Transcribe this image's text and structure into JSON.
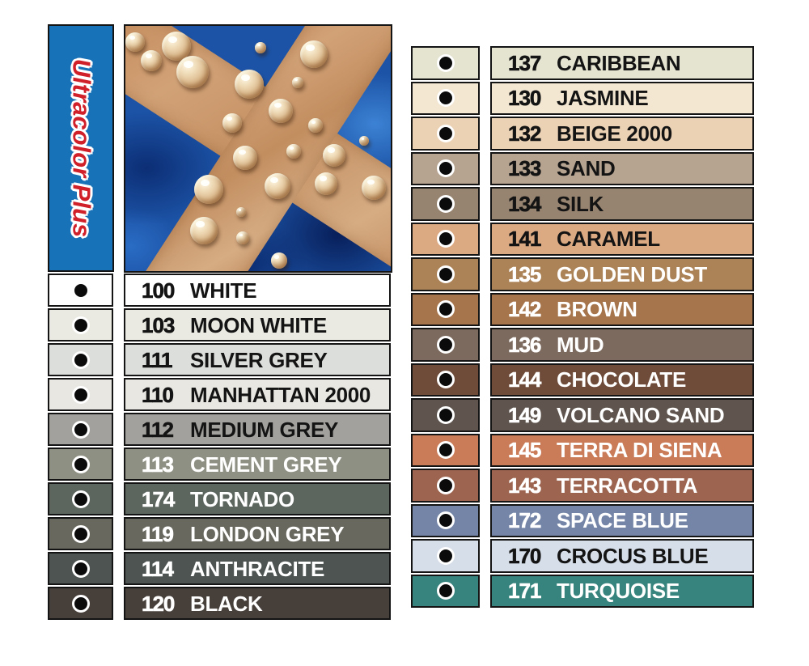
{
  "banner": {
    "title": "Ultracolor Plus",
    "bg_color": "#1872b8",
    "text_color": "#d0202a"
  },
  "photo": {
    "description": "blue tiles with tan grout cross and beaded water droplets",
    "tile_color": "#1c53a6",
    "grout_color": "#c79468",
    "droplets": [
      [
        12,
        20,
        12
      ],
      [
        32,
        43,
        13
      ],
      [
        63,
        25,
        18
      ],
      [
        83,
        57,
        20
      ],
      [
        167,
        27,
        7
      ],
      [
        233,
        35,
        17
      ],
      [
        153,
        72,
        18
      ],
      [
        213,
        70,
        7
      ],
      [
        192,
        105,
        15
      ],
      [
        132,
        120,
        12
      ],
      [
        235,
        123,
        9
      ],
      [
        148,
        163,
        15
      ],
      [
        208,
        155,
        9
      ],
      [
        258,
        160,
        14
      ],
      [
        295,
        142,
        6
      ],
      [
        103,
        202,
        18
      ],
      [
        188,
        198,
        16
      ],
      [
        248,
        195,
        14
      ],
      [
        307,
        200,
        15
      ],
      [
        143,
        230,
        6
      ],
      [
        97,
        253,
        17
      ],
      [
        145,
        262,
        8
      ],
      [
        190,
        290,
        10
      ]
    ]
  },
  "left_table": {
    "rows": [
      {
        "number": "100",
        "name": "WHITE",
        "color": "#ffffff",
        "text_color": "#141414"
      },
      {
        "number": "103",
        "name": "MOON WHITE",
        "color": "#eaeae2",
        "text_color": "#141414"
      },
      {
        "number": "111",
        "name": "SILVER GREY",
        "color": "#dcdedb",
        "text_color": "#141414"
      },
      {
        "number": "110",
        "name": "MANHATTAN 2000",
        "color": "#e9e7e1",
        "text_color": "#141414"
      },
      {
        "number": "112",
        "name": "MEDIUM GREY",
        "color": "#a3a19d",
        "text_color": "#141414"
      },
      {
        "number": "113",
        "name": "CEMENT GREY",
        "color": "#8e9083",
        "text_color": "#ffffff"
      },
      {
        "number": "174",
        "name": "TORNADO",
        "color": "#5d655f",
        "text_color": "#ffffff"
      },
      {
        "number": "119",
        "name": "LONDON GREY",
        "color": "#68685f",
        "text_color": "#ffffff"
      },
      {
        "number": "114",
        "name": "ANTHRACITE",
        "color": "#4d5451",
        "text_color": "#ffffff"
      },
      {
        "number": "120",
        "name": "BLACK",
        "color": "#463f3a",
        "text_color": "#ffffff"
      }
    ]
  },
  "right_table": {
    "rows": [
      {
        "number": "137",
        "name": "CARIBBEAN",
        "color": "#e5e4d1",
        "text_color": "#141414"
      },
      {
        "number": "130",
        "name": "JASMINE",
        "color": "#f3e7d2",
        "text_color": "#141414"
      },
      {
        "number": "132",
        "name": "BEIGE 2000",
        "color": "#ecd2b4",
        "text_color": "#141414"
      },
      {
        "number": "133",
        "name": "SAND",
        "color": "#b6a491",
        "text_color": "#141414"
      },
      {
        "number": "134",
        "name": "SILK",
        "color": "#968370",
        "text_color": "#141414"
      },
      {
        "number": "141",
        "name": "CARAMEL",
        "color": "#dcaa82",
        "text_color": "#141414"
      },
      {
        "number": "135",
        "name": "GOLDEN DUST",
        "color": "#ac8257",
        "text_color": "#ffffff"
      },
      {
        "number": "142",
        "name": "BROWN",
        "color": "#a7754c",
        "text_color": "#ffffff"
      },
      {
        "number": "136",
        "name": "MUD",
        "color": "#7d6a5e",
        "text_color": "#ffffff"
      },
      {
        "number": "144",
        "name": "CHOCOLATE",
        "color": "#6f4b39",
        "text_color": "#ffffff"
      },
      {
        "number": "149",
        "name": "VOLCANO SAND",
        "color": "#5f554e",
        "text_color": "#ffffff"
      },
      {
        "number": "145",
        "name": "TERRA DI SIENA",
        "color": "#ca7b58",
        "text_color": "#ffffff"
      },
      {
        "number": "143",
        "name": "TERRACOTTA",
        "color": "#9d6450",
        "text_color": "#ffffff"
      },
      {
        "number": "172",
        "name": "SPACE BLUE",
        "color": "#7485a8",
        "text_color": "#ffffff"
      },
      {
        "number": "170",
        "name": "CROCUS BLUE",
        "color": "#d6dee9",
        "text_color": "#141414"
      },
      {
        "number": "171",
        "name": "TURQUOISE",
        "color": "#37847e",
        "text_color": "#ffffff"
      }
    ]
  }
}
